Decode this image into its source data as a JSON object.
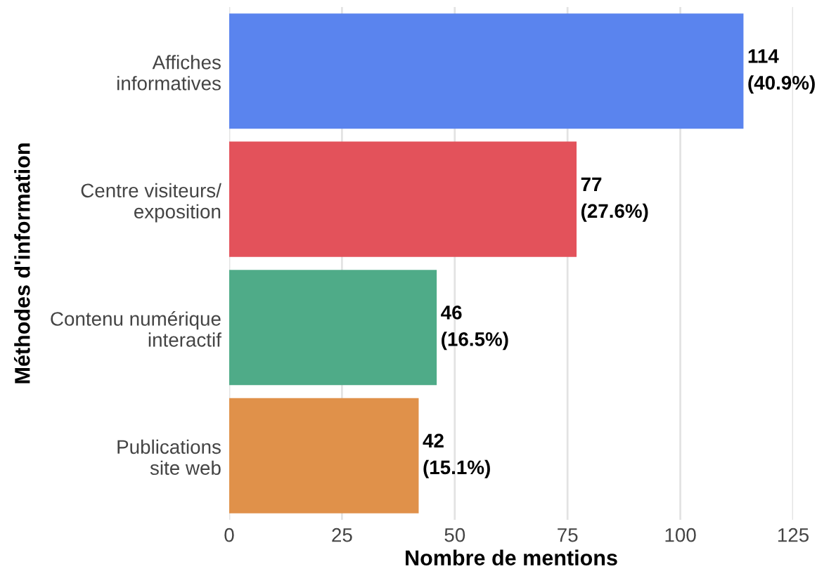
{
  "chart_data": {
    "type": "bar",
    "orientation": "horizontal",
    "xlabel": "Nombre de mentions",
    "ylabel": "Méthodes d'information",
    "categories": [
      "Affiches\ninformatives",
      "Centre visiteurs/\nexposition",
      "Contenu numérique\ninteractif",
      "Publications\nsite web"
    ],
    "values": [
      114,
      77,
      46,
      42
    ],
    "colors": [
      "#5a84ee",
      "#e3525b",
      "#4fab88",
      "#e0914a"
    ],
    "value_labels": [
      "114\n(40.9%)",
      "77\n(27.6%)",
      "46\n(16.5%)",
      "42\n(15.1%)"
    ],
    "xlim": [
      0,
      125
    ],
    "xticks": [
      0,
      25,
      50,
      75,
      100,
      125
    ],
    "grid": "x"
  }
}
